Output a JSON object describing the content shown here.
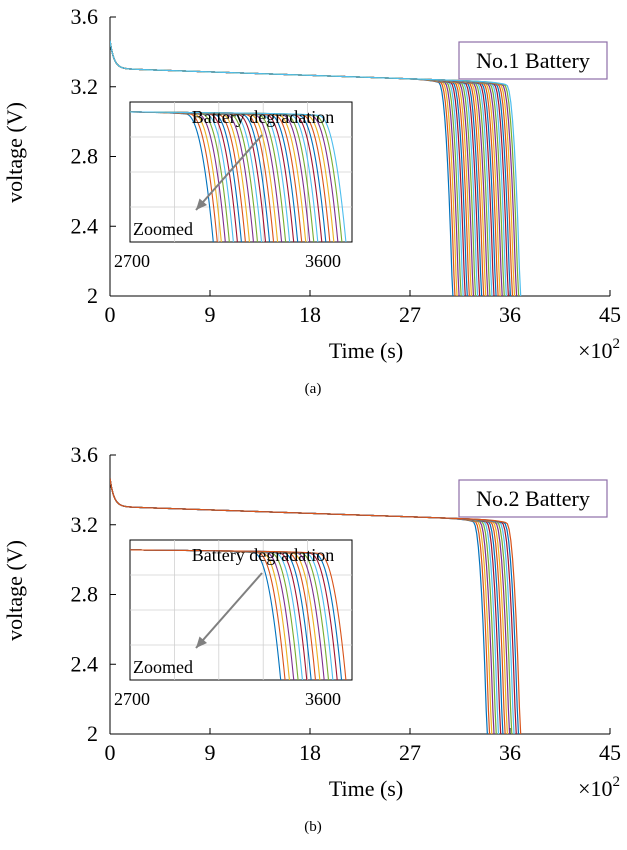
{
  "chart_data": [
    {
      "type": "line",
      "caption": "(a)",
      "xlabel": "Time (s)",
      "ylabel": "voltage (V)",
      "x_multiplier": "×10",
      "x_multiplier_exp": "2",
      "xlim": [
        0,
        45
      ],
      "ylim": [
        2,
        3.6
      ],
      "x_ticks": [
        0,
        9,
        18,
        27,
        36,
        45
      ],
      "y_ticks": [
        2,
        2.4,
        2.8,
        3.2,
        3.6
      ],
      "y_tick_labels": [
        "2",
        "2.4",
        "2.8",
        "3.2",
        "3.6"
      ],
      "legend_box": "No.1 Battery",
      "num_curves": 34,
      "end_time_range_x100s": [
        30.9,
        37.0
      ],
      "inset": {
        "label_zoomed": "Zoomed",
        "annotation": "Battery degradation",
        "x_tick_labels": [
          "2700",
          "3600"
        ]
      }
    },
    {
      "type": "line",
      "caption": "(b)",
      "xlabel": "Time (s)",
      "ylabel": "voltage (V)",
      "x_multiplier": "×10",
      "x_multiplier_exp": "2",
      "xlim": [
        0,
        45
      ],
      "ylim": [
        2,
        3.6
      ],
      "x_ticks": [
        0,
        9,
        18,
        27,
        36,
        45
      ],
      "y_ticks": [
        2,
        2.4,
        2.8,
        3.2,
        3.6
      ],
      "y_tick_labels": [
        "2",
        "2.4",
        "2.8",
        "3.2",
        "3.6"
      ],
      "legend_box": "No.2 Battery",
      "num_curves": 16,
      "end_time_range_x100s": [
        34.0,
        37.0
      ],
      "inset": {
        "label_zoomed": "Zoomed",
        "annotation": "Battery degradation",
        "x_tick_labels": [
          "2700",
          "3600"
        ]
      }
    }
  ],
  "colors": {
    "palette": [
      "#0072BD",
      "#D95319",
      "#EDB120",
      "#7E2F8E",
      "#77AC30",
      "#4DBEEE",
      "#A2142F"
    ],
    "legend_border": "#8E6EA8",
    "arrow": "#808080"
  }
}
